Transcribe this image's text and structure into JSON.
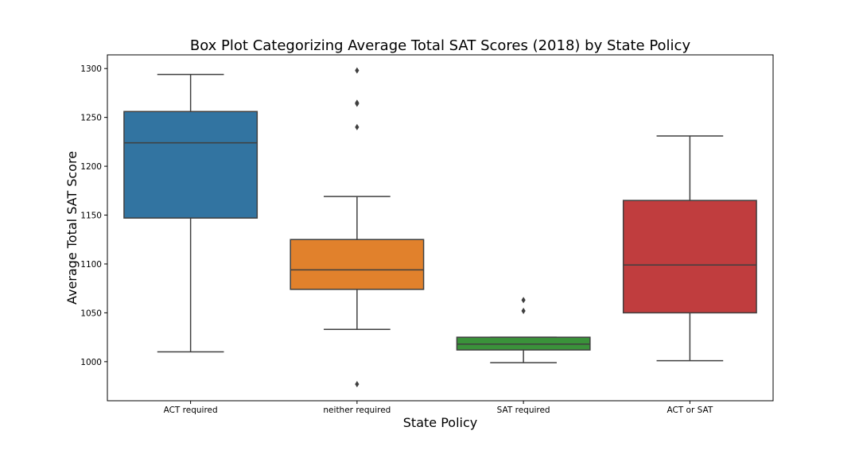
{
  "chart_data": {
    "type": "box",
    "title": "Box Plot Categorizing Average Total SAT Scores (2018) by State Policy",
    "xlabel": "State Policy",
    "ylabel": "Average Total SAT Score",
    "ylim": [
      960,
      1314
    ],
    "yticks": [
      1000,
      1050,
      1100,
      1150,
      1200,
      1250,
      1300
    ],
    "grid": false,
    "legend": "none",
    "categories": [
      "ACT required",
      "neither required",
      "SAT required",
      "ACT or SAT"
    ],
    "colors": [
      "#3274a1",
      "#e1812c",
      "#3a923a",
      "#c03d3e"
    ],
    "line_color": "#3f3f3f",
    "boxes": [
      {
        "category": "ACT required",
        "whisker_low": 1010,
        "q1": 1147,
        "median": 1224,
        "q3": 1256,
        "whisker_high": 1294,
        "outliers": []
      },
      {
        "category": "neither required",
        "whisker_low": 1033,
        "q1": 1074,
        "median": 1094,
        "q3": 1125,
        "whisker_high": 1169,
        "outliers": [
          977,
          1240,
          1264,
          1265,
          1298
        ]
      },
      {
        "category": "SAT required",
        "whisker_low": 999,
        "q1": 1012,
        "median": 1018,
        "q3": 1025,
        "whisker_high": 1025,
        "outliers": [
          1052,
          1063
        ]
      },
      {
        "category": "ACT or SAT",
        "whisker_low": 1001,
        "q1": 1050,
        "median": 1099,
        "q3": 1165,
        "whisker_high": 1231,
        "outliers": []
      }
    ]
  }
}
